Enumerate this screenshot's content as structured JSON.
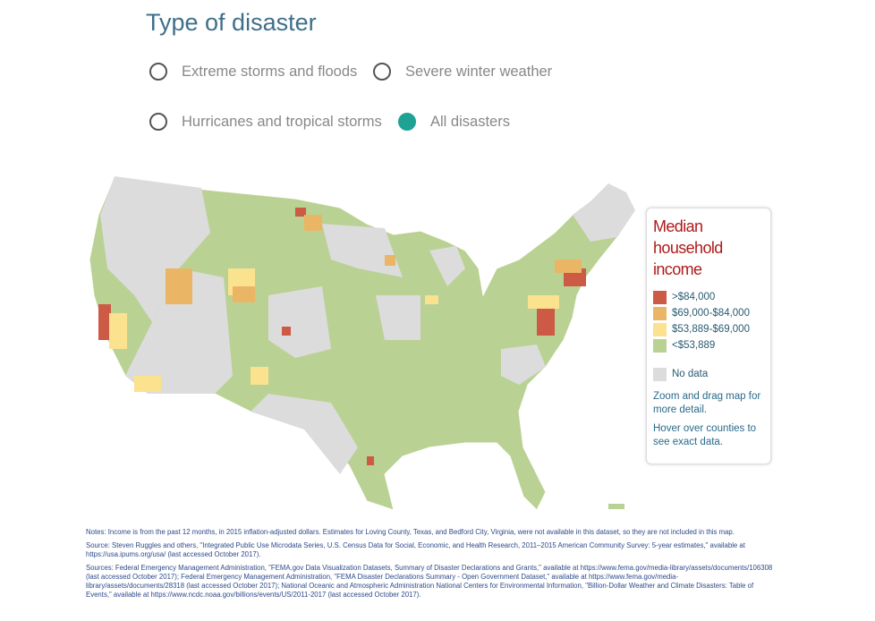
{
  "title": "Type of disaster",
  "options": [
    {
      "label": "Extreme storms and floods",
      "selected": false
    },
    {
      "label": "Severe winter weather",
      "selected": false
    },
    {
      "label": "Hurricanes and tropical storms",
      "selected": false
    },
    {
      "label": "All disasters",
      "selected": true
    }
  ],
  "legend": {
    "title": "Median household income",
    "items": [
      {
        "label": ">$84,000",
        "color": "#cc5a45"
      },
      {
        "label": "$69,000-$84,000",
        "color": "#ebb566"
      },
      {
        "label": "$53,889-$69,000",
        "color": "#fbe28e"
      },
      {
        "label": "<$53,889",
        "color": "#b9d294"
      }
    ],
    "nodata": {
      "label": "No data",
      "color": "#dcdcdc"
    },
    "note1": "Zoom and drag map for more detail.",
    "note2": "Hover over counties to see exact data."
  },
  "notes": [
    "Notes: Income is from the past 12 months, in 2015 inflation-adjusted dollars. Estimates for Loving County, Texas, and Bedford City, Virginia, were not available in this dataset, so they are not included in this map.",
    "Source: Steven Ruggles and others, \"Integrated Public Use Microdata Series, U.S. Census Data for Social, Economic, and Health Research, 2011–2015 American Community Survey: 5-year estimates,\" available at https://usa.ipums.org/usa/ (last accessed October 2017).",
    "Sources: Federal Emergency Management Administration, \"FEMA.gov Data Visualization Datasets, Summary of Disaster Declarations and Grants,\" available at https://www.fema.gov/media-library/assets/documents/106308 (last accessed October 2017); Federal Emergency Management Administration, \"FEMA Disaster Declarations Summary - Open Government Dataset,\" available at https://www.fema.gov/media-library/assets/documents/28318 (last accessed October 2017); National Oceanic and Atmospheric Administration National Centers for Environmental Information, \"Billion-Dollar Weather and Climate Disasters: Table of Events,\" available at https://www.ncdc.noaa.gov/billions/events/US/2011-2017 (last accessed October 2017)."
  ]
}
